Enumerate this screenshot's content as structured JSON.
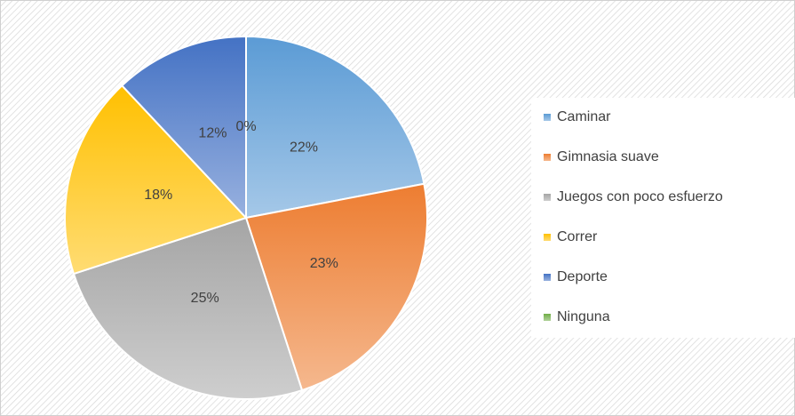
{
  "chart_data": {
    "type": "pie",
    "categories": [
      "Caminar",
      "Gimnasia suave",
      "Juegos con poco esfuerzo",
      "Correr",
      "Deporte",
      "Ninguna"
    ],
    "values": [
      22,
      23,
      25,
      18,
      12,
      0
    ],
    "value_labels": [
      "22%",
      "23%",
      "25%",
      "18%",
      "12%",
      "0%"
    ],
    "colors": [
      "#5b9bd5",
      "#ed7d31",
      "#a5a5a5",
      "#ffc000",
      "#4472c4",
      "#70ad47"
    ],
    "legend": "right"
  }
}
